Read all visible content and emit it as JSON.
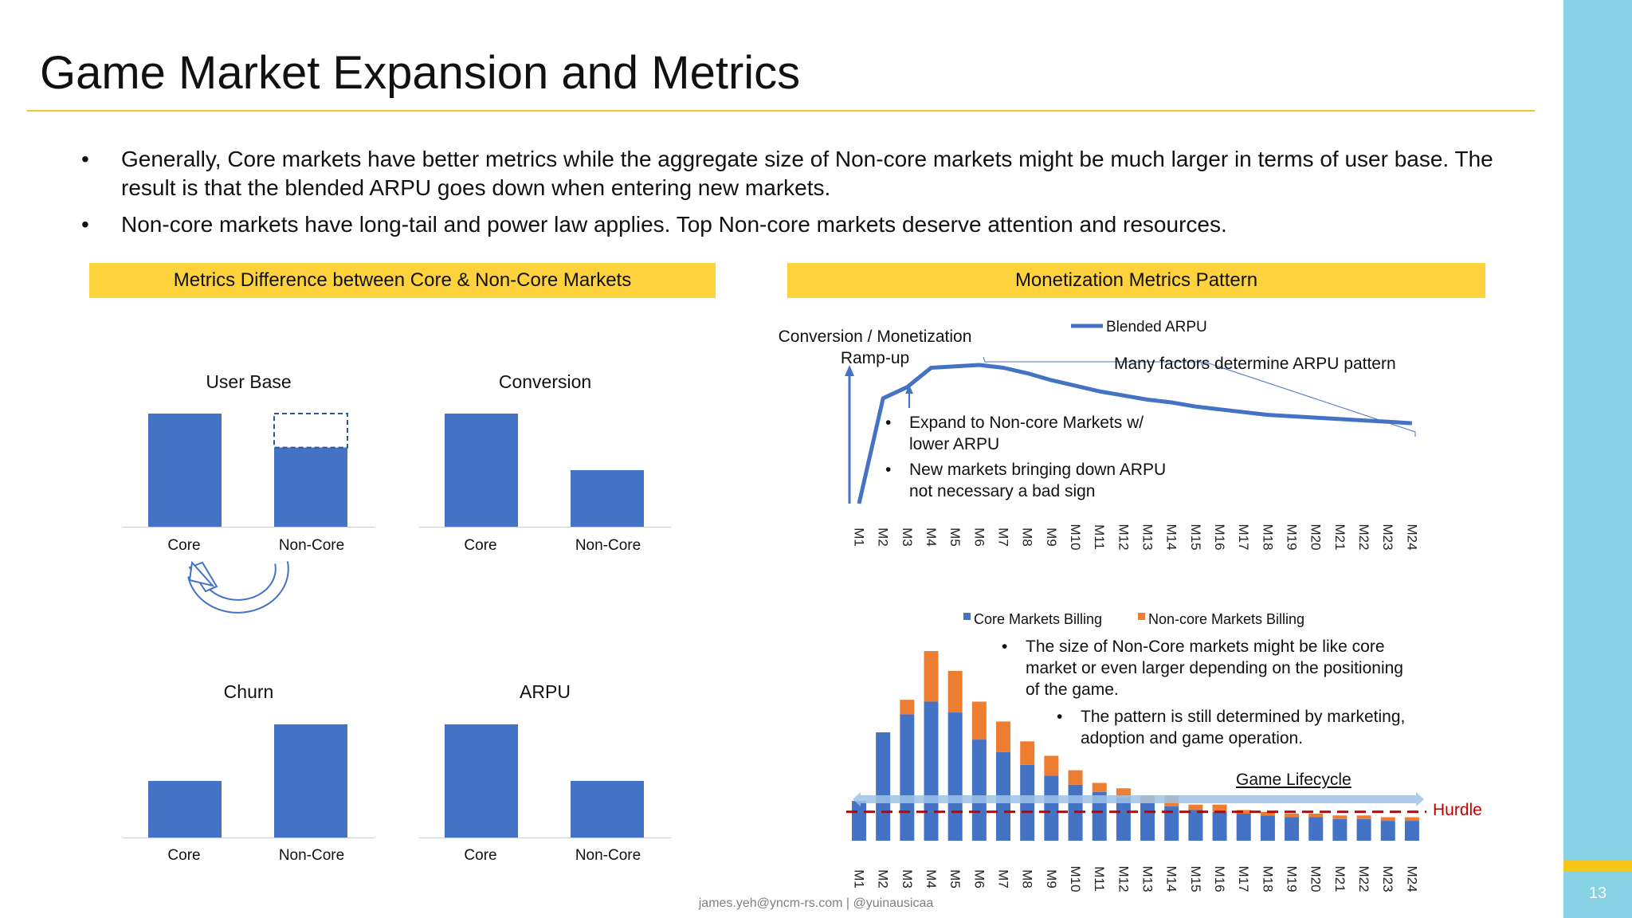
{
  "slide": {
    "title": "Game Market Expansion and Metrics",
    "page_number": "13",
    "footer": "james.yeh@yncm-rs.com | @yuinausicaa",
    "bullets": [
      {
        "marker": "•",
        "text": "Generally, Core markets have better metrics while the aggregate size of Non-core markets might be much larger in terms of user base. The result is that the blended ARPU goes down when entering new markets."
      },
      {
        "marker": "•",
        "text": "Non-core markets have long-tail and power law applies. Top Non-core markets deserve attention and resources."
      }
    ],
    "colors": {
      "accent_yellow": "#fdd23c",
      "bar_blue": "#4472c4",
      "bar_orange": "#ed7d31",
      "hurdle_red": "#c00000",
      "side_blue": "#86d1e4",
      "lifecycle_arrow": "#9dc3e6"
    }
  },
  "left_panel": {
    "header": "Metrics Difference between Core & Non-Core Markets",
    "cycle_icon": "circular-arrow-icon"
  },
  "right_panel": {
    "header": "Monetization Metrics Pattern",
    "ramp_label": "Conversion / Monetization Ramp-up",
    "brace_label": "Many factors determine ARPU pattern",
    "line_notes": [
      {
        "marker": "•",
        "text": "Expand to Non-core Markets w/ lower ARPU"
      },
      {
        "marker": "•",
        "text": "New markets bringing down ARPU not necessary a bad sign"
      }
    ],
    "bar_notes": [
      {
        "marker": "•",
        "text": "The size of Non-Core markets might be like core market or even larger depending on the positioning of the game."
      },
      {
        "marker": "•",
        "text": "The pattern is still determined by marketing, adoption and game operation."
      }
    ],
    "lifecycle_label": "Game Lifecycle",
    "hurdle_label": "Hurdle"
  },
  "chart_data": [
    {
      "type": "bar",
      "title": "User Base",
      "categories": [
        "Core",
        "Non-Core"
      ],
      "values": [
        100,
        70
      ],
      "potential_extra": {
        "category": "Non-Core",
        "value": 30
      },
      "ylim": [
        0,
        115
      ]
    },
    {
      "type": "bar",
      "title": "Conversion",
      "categories": [
        "Core",
        "Non-Core"
      ],
      "values": [
        100,
        50
      ],
      "ylim": [
        0,
        115
      ]
    },
    {
      "type": "bar",
      "title": "Churn",
      "categories": [
        "Core",
        "Non-Core"
      ],
      "values": [
        50,
        100
      ],
      "ylim": [
        0,
        115
      ]
    },
    {
      "type": "bar",
      "title": "ARPU",
      "categories": [
        "Core",
        "Non-Core"
      ],
      "values": [
        100,
        50
      ],
      "ylim": [
        0,
        115
      ]
    },
    {
      "type": "line",
      "title": "",
      "legend": [
        "Blended ARPU"
      ],
      "categories": [
        "M1",
        "M2",
        "M3",
        "M4",
        "M5",
        "M6",
        "M7",
        "M8",
        "M9",
        "M10",
        "M11",
        "M12",
        "M13",
        "M14",
        "M15",
        "M16",
        "M17",
        "M18",
        "M19",
        "M20",
        "M21",
        "M22",
        "M23",
        "M24"
      ],
      "series": [
        {
          "name": "Blended ARPU",
          "values": [
            0,
            76,
            84,
            98,
            99,
            100,
            98,
            94,
            89,
            85,
            81,
            78,
            75,
            73,
            70,
            68,
            66,
            64,
            63,
            62,
            61,
            60,
            59,
            58
          ]
        }
      ],
      "ylim": [
        0,
        115
      ]
    },
    {
      "type": "bar",
      "stacked": true,
      "title": "",
      "legend": [
        "Core Markets Billing",
        "Non-core Markets Billing"
      ],
      "categories": [
        "M1",
        "M2",
        "M3",
        "M4",
        "M5",
        "M6",
        "M7",
        "M8",
        "M9",
        "M10",
        "M11",
        "M12",
        "M13",
        "M14",
        "M15",
        "M16",
        "M17",
        "M18",
        "M19",
        "M20",
        "M21",
        "M22",
        "M23",
        "M24"
      ],
      "series": [
        {
          "name": "Core Markets Billing",
          "values": [
            22,
            60,
            70,
            77,
            71,
            56,
            49,
            42,
            36,
            31,
            27,
            24,
            21,
            19,
            17,
            16,
            15,
            14,
            13,
            13,
            12,
            12,
            11,
            11
          ]
        },
        {
          "name": "Non-core Markets Billing",
          "values": [
            0,
            0,
            8,
            28,
            23,
            21,
            17,
            13,
            11,
            8,
            5,
            5,
            4,
            6,
            3,
            4,
            2,
            2,
            2,
            2,
            2,
            2,
            2,
            2
          ]
        }
      ],
      "hurdle": 16,
      "ylim": [
        0,
        100
      ]
    }
  ]
}
